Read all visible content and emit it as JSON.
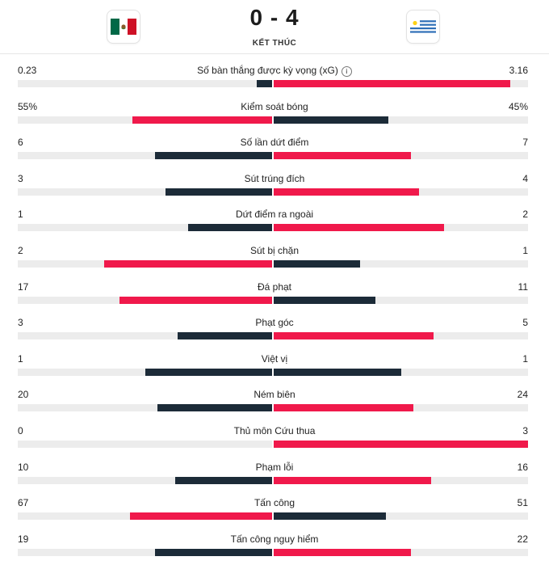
{
  "match": {
    "score": "0 - 4",
    "status": "KẾT THÚC",
    "home_flag": "mexico-flag",
    "away_flag": "uruguay-flag"
  },
  "colors": {
    "home": "#1c2b38",
    "away": "#f0194b",
    "track": "#ececec"
  },
  "stats": [
    {
      "label": "Số bàn thắng được kỳ vọng (xG)",
      "home": "0.23",
      "away": "3.16",
      "home_frac": 0.06,
      "away_frac": 0.93,
      "home_color": "dark",
      "away_color": "red",
      "info": true
    },
    {
      "label": "Kiểm soát bóng",
      "home": "55%",
      "away": "45%",
      "home_frac": 0.55,
      "away_frac": 0.45,
      "home_color": "red",
      "away_color": "dark"
    },
    {
      "label": "Số lần dứt điểm",
      "home": "6",
      "away": "7",
      "home_frac": 0.46,
      "away_frac": 0.54,
      "home_color": "dark",
      "away_color": "red"
    },
    {
      "label": "Sút trúng đích",
      "home": "3",
      "away": "4",
      "home_frac": 0.42,
      "away_frac": 0.57,
      "home_color": "dark",
      "away_color": "red"
    },
    {
      "label": "Dứt điểm ra ngoài",
      "home": "1",
      "away": "2",
      "home_frac": 0.33,
      "away_frac": 0.67,
      "home_color": "dark",
      "away_color": "red"
    },
    {
      "label": "Sút bị chặn",
      "home": "2",
      "away": "1",
      "home_frac": 0.66,
      "away_frac": 0.34,
      "home_color": "red",
      "away_color": "dark"
    },
    {
      "label": "Đá phạt",
      "home": "17",
      "away": "11",
      "home_frac": 0.6,
      "away_frac": 0.4,
      "home_color": "red",
      "away_color": "dark"
    },
    {
      "label": "Phạt góc",
      "home": "3",
      "away": "5",
      "home_frac": 0.37,
      "away_frac": 0.63,
      "home_color": "dark",
      "away_color": "red"
    },
    {
      "label": "Việt vị",
      "home": "1",
      "away": "1",
      "home_frac": 0.5,
      "away_frac": 0.5,
      "home_color": "dark",
      "away_color": "dark"
    },
    {
      "label": "Ném biên",
      "home": "20",
      "away": "24",
      "home_frac": 0.45,
      "away_frac": 0.55,
      "home_color": "dark",
      "away_color": "red"
    },
    {
      "label": "Thủ môn Cứu thua",
      "home": "0",
      "away": "3",
      "home_frac": 0.0,
      "away_frac": 1.0,
      "home_color": "dark",
      "away_color": "red"
    },
    {
      "label": "Phạm lỗi",
      "home": "10",
      "away": "16",
      "home_frac": 0.38,
      "away_frac": 0.62,
      "home_color": "dark",
      "away_color": "red"
    },
    {
      "label": "Tấn công",
      "home": "67",
      "away": "51",
      "home_frac": 0.56,
      "away_frac": 0.44,
      "home_color": "red",
      "away_color": "dark"
    },
    {
      "label": "Tấn công nguy hiểm",
      "home": "19",
      "away": "22",
      "home_frac": 0.46,
      "away_frac": 0.54,
      "home_color": "dark",
      "away_color": "red"
    }
  ]
}
